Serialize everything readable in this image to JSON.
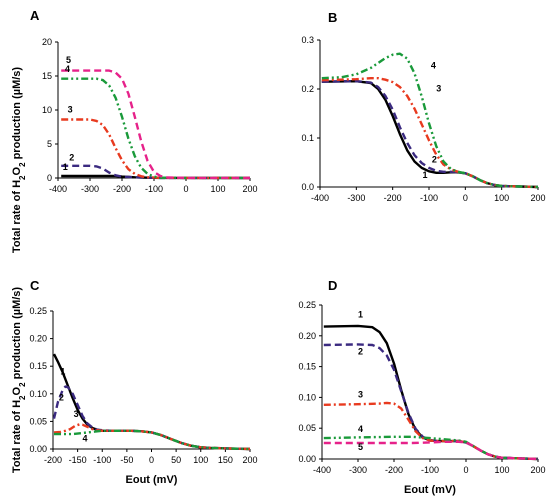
{
  "colors": {
    "1": "#000000",
    "2": "#3b2a80",
    "3": "#e83a1f",
    "4": "#1a9a3a",
    "5": "#e6228a"
  },
  "chart_data": [
    {
      "panel": "A",
      "type": "line",
      "xlabel": "",
      "ylabel": "Total rate of H2O2 production (µM/s)",
      "xlim": [
        -400,
        200
      ],
      "ylim": [
        0,
        20
      ],
      "xticks": [
        "-400",
        "-300",
        "-200",
        "-100",
        "0",
        "100",
        "200"
      ],
      "yticks": [
        "0",
        "5",
        "10",
        "15",
        "20"
      ],
      "series": [
        {
          "name": "1",
          "style": "solid",
          "x": [
            -390,
            -300,
            -250,
            -220,
            -200,
            -160,
            -120,
            -80,
            0,
            200
          ],
          "y": [
            0.3,
            0.3,
            0.3,
            0.3,
            0.2,
            0.1,
            0.05,
            0.02,
            0.01,
            0.0
          ]
        },
        {
          "name": "2",
          "style": "dash",
          "x": [
            -390,
            -330,
            -300,
            -280,
            -260,
            -240,
            -220,
            -200,
            -160,
            -120,
            -80,
            0,
            200
          ],
          "y": [
            1.8,
            1.8,
            1.8,
            1.7,
            1.4,
            0.8,
            0.4,
            0.2,
            0.1,
            0.05,
            0.02,
            0.01,
            0.0
          ]
        },
        {
          "name": "3",
          "style": "dashdot",
          "x": [
            -390,
            -300,
            -280,
            -260,
            -240,
            -220,
            -200,
            -180,
            -160,
            -140,
            -120,
            -80,
            0,
            200
          ],
          "y": [
            8.6,
            8.6,
            8.4,
            7.8,
            6.4,
            4.4,
            2.6,
            1.3,
            0.6,
            0.25,
            0.1,
            0.03,
            0.01,
            0.0
          ]
        },
        {
          "name": "4",
          "style": "dashdotdot",
          "x": [
            -390,
            -280,
            -260,
            -240,
            -220,
            -200,
            -180,
            -160,
            -140,
            -120,
            -100,
            -80,
            0,
            200
          ],
          "y": [
            14.6,
            14.6,
            14.4,
            13.6,
            11.8,
            9.0,
            5.8,
            3.2,
            1.5,
            0.6,
            0.2,
            0.05,
            0.01,
            0.0
          ]
        },
        {
          "name": "5",
          "style": "dash",
          "x": [
            -390,
            -240,
            -220,
            -200,
            -180,
            -160,
            -140,
            -120,
            -100,
            -80,
            -60,
            0,
            200
          ],
          "y": [
            15.8,
            15.8,
            15.5,
            14.6,
            12.4,
            9.0,
            5.4,
            2.5,
            0.9,
            0.3,
            0.08,
            0.01,
            0.0
          ]
        }
      ]
    },
    {
      "panel": "B",
      "type": "line",
      "xlabel": "",
      "ylabel": "",
      "xlim": [
        -400,
        200
      ],
      "ylim": [
        0,
        0.3
      ],
      "xticks": [
        "-400",
        "-300",
        "-200",
        "-100",
        "0",
        "100",
        "200"
      ],
      "yticks": [
        "0.0",
        "0.1",
        "0.2",
        "0.3"
      ],
      "series": [
        {
          "name": "1",
          "style": "solid",
          "x": [
            -395,
            -300,
            -260,
            -240,
            -220,
            -200,
            -180,
            -160,
            -140,
            -120,
            -100,
            -80,
            -60,
            -40,
            -20,
            0,
            20,
            40,
            60,
            80,
            100,
            150,
            200
          ],
          "y": [
            0.215,
            0.216,
            0.212,
            0.2,
            0.178,
            0.145,
            0.108,
            0.075,
            0.052,
            0.039,
            0.032,
            0.029,
            0.029,
            0.03,
            0.03,
            0.028,
            0.022,
            0.014,
            0.008,
            0.004,
            0.002,
            0.001,
            0.0
          ]
        },
        {
          "name": "2",
          "style": "dash",
          "x": [
            -395,
            -300,
            -260,
            -240,
            -220,
            -200,
            -180,
            -160,
            -140,
            -120,
            -100,
            -80,
            -60,
            -40,
            -20,
            0,
            20,
            40,
            60,
            80,
            100,
            150,
            200
          ],
          "y": [
            0.215,
            0.216,
            0.213,
            0.204,
            0.186,
            0.158,
            0.122,
            0.09,
            0.065,
            0.049,
            0.039,
            0.033,
            0.031,
            0.031,
            0.03,
            0.028,
            0.022,
            0.014,
            0.008,
            0.004,
            0.002,
            0.001,
            0.0
          ]
        },
        {
          "name": "3",
          "style": "dashdot",
          "x": [
            -395,
            -300,
            -260,
            -240,
            -220,
            -200,
            -180,
            -160,
            -140,
            -120,
            -100,
            -80,
            -60,
            -40,
            -20,
            0,
            20,
            40,
            60,
            80,
            100,
            150,
            200
          ],
          "y": [
            0.218,
            0.22,
            0.222,
            0.222,
            0.219,
            0.214,
            0.204,
            0.186,
            0.16,
            0.128,
            0.095,
            0.066,
            0.046,
            0.036,
            0.031,
            0.028,
            0.022,
            0.014,
            0.008,
            0.004,
            0.002,
            0.001,
            0.0
          ]
        },
        {
          "name": "4",
          "style": "dashdotdot",
          "x": [
            -395,
            -340,
            -300,
            -260,
            -240,
            -220,
            -200,
            -180,
            -160,
            -140,
            -120,
            -100,
            -80,
            -60,
            -40,
            -20,
            0,
            20,
            40,
            60,
            80,
            100,
            150,
            200
          ],
          "y": [
            0.222,
            0.224,
            0.23,
            0.243,
            0.253,
            0.263,
            0.27,
            0.272,
            0.262,
            0.232,
            0.185,
            0.13,
            0.083,
            0.052,
            0.037,
            0.031,
            0.028,
            0.022,
            0.014,
            0.008,
            0.004,
            0.002,
            0.001,
            0.0
          ]
        }
      ]
    },
    {
      "panel": "C",
      "type": "line",
      "xlabel": "Eout   (mV)",
      "ylabel": "Total rate of H2O2 production (µM/s)",
      "xlim": [
        -200,
        200
      ],
      "ylim": [
        0,
        0.25
      ],
      "xticks": [
        "-200",
        "-150",
        "-100",
        "-50",
        "0",
        "50",
        "100",
        "150",
        "200"
      ],
      "yticks": [
        "0.00",
        "0.05",
        "0.10",
        "0.15",
        "0.20",
        "0.25"
      ],
      "series": [
        {
          "name": "1",
          "style": "solid",
          "x": [
            -198,
            -190,
            -180,
            -170,
            -160,
            -150,
            -140,
            -130,
            -120,
            -110,
            -100,
            -80,
            -60,
            -40,
            -20,
            0,
            20,
            40,
            60,
            80,
            100,
            120,
            150,
            200
          ],
          "y": [
            0.172,
            0.158,
            0.138,
            0.115,
            0.092,
            0.071,
            0.055,
            0.044,
            0.038,
            0.035,
            0.033,
            0.033,
            0.033,
            0.033,
            0.032,
            0.03,
            0.025,
            0.018,
            0.011,
            0.006,
            0.003,
            0.002,
            0.001,
            0.0
          ]
        },
        {
          "name": "2",
          "style": "dash",
          "x": [
            -198,
            -190,
            -180,
            -175,
            -170,
            -160,
            -150,
            -140,
            -130,
            -120,
            -110,
            -100,
            -80,
            -60,
            -40,
            -20,
            0,
            20,
            40,
            60,
            80,
            100,
            120,
            150,
            200
          ],
          "y": [
            0.055,
            0.085,
            0.108,
            0.113,
            0.112,
            0.1,
            0.08,
            0.06,
            0.046,
            0.039,
            0.035,
            0.034,
            0.033,
            0.033,
            0.033,
            0.032,
            0.03,
            0.025,
            0.018,
            0.011,
            0.006,
            0.003,
            0.002,
            0.001,
            0.0
          ]
        },
        {
          "name": "3",
          "style": "dashdot",
          "x": [
            -198,
            -185,
            -175,
            -165,
            -155,
            -145,
            -140,
            -130,
            -120,
            -110,
            -100,
            -80,
            -60,
            -40,
            -20,
            0,
            20,
            40,
            60,
            80,
            100,
            120,
            150,
            200
          ],
          "y": [
            0.03,
            0.031,
            0.033,
            0.036,
            0.042,
            0.045,
            0.044,
            0.04,
            0.036,
            0.034,
            0.033,
            0.033,
            0.033,
            0.033,
            0.032,
            0.03,
            0.025,
            0.018,
            0.011,
            0.006,
            0.003,
            0.002,
            0.001,
            0.0
          ]
        },
        {
          "name": "4",
          "style": "dashdotdot",
          "x": [
            -198,
            -180,
            -160,
            -140,
            -120,
            -100,
            -80,
            -60,
            -40,
            -20,
            0,
            20,
            40,
            60,
            80,
            100,
            120,
            150,
            200
          ],
          "y": [
            0.027,
            0.027,
            0.027,
            0.029,
            0.031,
            0.033,
            0.033,
            0.033,
            0.033,
            0.032,
            0.03,
            0.025,
            0.018,
            0.011,
            0.006,
            0.003,
            0.002,
            0.001,
            0.0
          ]
        }
      ]
    },
    {
      "panel": "D",
      "type": "line",
      "xlabel": "Eout   (mV)",
      "ylabel": "",
      "xlim": [
        -400,
        200
      ],
      "ylim": [
        0,
        0.25
      ],
      "xticks": [
        "-400",
        "-300",
        "-200",
        "-100",
        "0",
        "100",
        "200"
      ],
      "yticks": [
        "0.00",
        "0.05",
        "0.10",
        "0.15",
        "0.20",
        "0.25"
      ],
      "series": [
        {
          "name": "1",
          "style": "solid",
          "x": [
            -395,
            -300,
            -260,
            -240,
            -220,
            -200,
            -180,
            -160,
            -140,
            -120,
            -100,
            -80,
            -60,
            -40,
            -20,
            0,
            20,
            40,
            60,
            80,
            100,
            150,
            200
          ],
          "y": [
            0.215,
            0.216,
            0.214,
            0.206,
            0.188,
            0.155,
            0.112,
            0.073,
            0.047,
            0.035,
            0.03,
            0.029,
            0.029,
            0.029,
            0.029,
            0.027,
            0.021,
            0.014,
            0.008,
            0.004,
            0.002,
            0.001,
            0.0
          ]
        },
        {
          "name": "2",
          "style": "dash",
          "x": [
            -395,
            -300,
            -260,
            -240,
            -220,
            -200,
            -180,
            -160,
            -140,
            -120,
            -100,
            -80,
            -60,
            -40,
            -20,
            0,
            20,
            40,
            60,
            80,
            100,
            150,
            200
          ],
          "y": [
            0.185,
            0.186,
            0.185,
            0.18,
            0.168,
            0.145,
            0.11,
            0.075,
            0.049,
            0.036,
            0.031,
            0.029,
            0.029,
            0.029,
            0.029,
            0.027,
            0.021,
            0.014,
            0.008,
            0.004,
            0.002,
            0.001,
            0.0
          ]
        },
        {
          "name": "3",
          "style": "dashdot",
          "x": [
            -395,
            -300,
            -240,
            -220,
            -200,
            -180,
            -160,
            -140,
            -120,
            -100,
            -80,
            -60,
            -40,
            -20,
            0,
            20,
            40,
            60,
            80,
            100,
            150,
            200
          ],
          "y": [
            0.088,
            0.089,
            0.09,
            0.091,
            0.09,
            0.082,
            0.064,
            0.045,
            0.034,
            0.03,
            0.029,
            0.029,
            0.029,
            0.029,
            0.027,
            0.021,
            0.014,
            0.008,
            0.004,
            0.002,
            0.001,
            0.0
          ]
        },
        {
          "name": "4",
          "style": "dashdotdot",
          "x": [
            -395,
            -300,
            -200,
            -150,
            -100,
            -60,
            -40,
            -20,
            0,
            20,
            40,
            60,
            80,
            100,
            150,
            200
          ],
          "y": [
            0.034,
            0.035,
            0.036,
            0.036,
            0.034,
            0.032,
            0.031,
            0.03,
            0.028,
            0.021,
            0.014,
            0.008,
            0.004,
            0.002,
            0.001,
            0.0
          ]
        },
        {
          "name": "5",
          "style": "dash",
          "x": [
            -395,
            -300,
            -200,
            -150,
            -100,
            -60,
            -40,
            -20,
            0,
            20,
            40,
            60,
            80,
            100,
            150,
            200
          ],
          "y": [
            0.026,
            0.026,
            0.026,
            0.026,
            0.027,
            0.028,
            0.028,
            0.028,
            0.027,
            0.021,
            0.014,
            0.008,
            0.004,
            0.002,
            0.001,
            0.0
          ]
        }
      ]
    }
  ]
}
